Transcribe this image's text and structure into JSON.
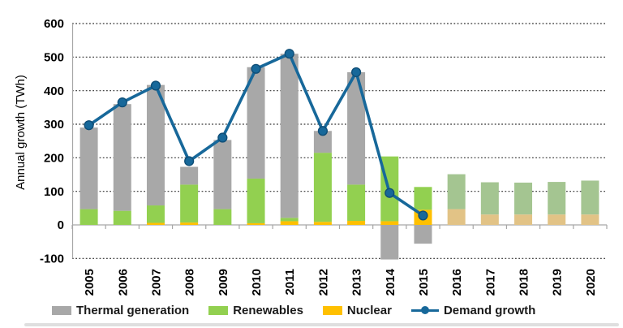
{
  "chart_data": {
    "type": "combo-stacked-bar-line",
    "title": "",
    "ylabel": "Annual growth (TWh)",
    "ylim": [
      -100,
      600
    ],
    "ytick_step": 100,
    "grid": "dotted-horizontal",
    "legend_position": "bottom",
    "categories": [
      "2005",
      "2006",
      "2007",
      "2008",
      "2009",
      "2010",
      "2011",
      "2012",
      "2013",
      "2014",
      "2015",
      "2016",
      "2017",
      "2018",
      "2019",
      "2020"
    ],
    "stack_order_bottom_to_top": [
      "Nuclear",
      "Renewables",
      "Thermal generation"
    ],
    "projected_from_category": "2016",
    "projected_from_index": 11,
    "series": [
      {
        "name": "Thermal generation",
        "type": "bar",
        "color": "#a8a8a8",
        "color_projected": "#a8a8a8",
        "values": [
          243,
          318,
          359,
          53,
          206,
          332,
          489,
          65,
          335,
          -103,
          -56,
          null,
          null,
          null,
          null,
          null
        ]
      },
      {
        "name": "Renewables",
        "type": "bar",
        "color": "#92d050",
        "color_projected": "#a4c591",
        "values": [
          47,
          42,
          52,
          113,
          47,
          133,
          10,
          206,
          108,
          193,
          68,
          104,
          96,
          95,
          97,
          101
        ]
      },
      {
        "name": "Nuclear",
        "type": "bar",
        "color": "#ffc000",
        "color_projected": "#e2c386",
        "values": [
          0,
          0,
          6,
          7,
          0,
          5,
          11,
          9,
          12,
          11,
          45,
          47,
          31,
          31,
          31,
          31
        ]
      },
      {
        "name": "Demand growth",
        "type": "line",
        "color": "#17689a",
        "marker": "circle",
        "marker_stroke": "#0f4e77",
        "values": [
          297,
          365,
          415,
          190,
          260,
          465,
          510,
          280,
          455,
          95,
          28,
          null,
          null,
          null,
          null,
          null
        ]
      }
    ],
    "legend": [
      {
        "label": "Thermal generation",
        "swatch": "rect",
        "color": "#a8a8a8"
      },
      {
        "label": "Renewables",
        "swatch": "rect",
        "color": "#92d050"
      },
      {
        "label": "Nuclear",
        "swatch": "rect",
        "color": "#ffc000"
      },
      {
        "label": "Demand growth",
        "swatch": "line-dot",
        "color": "#17689a"
      }
    ],
    "gridline_color": "#303030",
    "axis_color": "#a6a6a6",
    "text_color": "#000000"
  }
}
